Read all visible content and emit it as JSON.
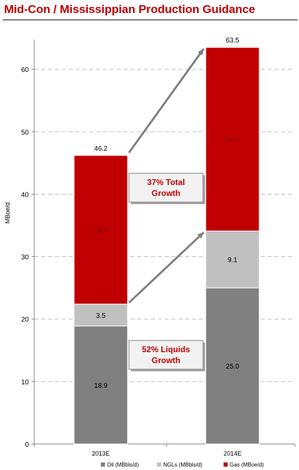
{
  "title": "Mid-Con / Mississippian Production Guidance",
  "chart_data": {
    "type": "bar",
    "stacked": true,
    "categories": [
      "2013E",
      "2014E"
    ],
    "series": [
      {
        "name": "Oil (MBbls/d)",
        "values": [
          18.9,
          25.0
        ],
        "labels": [
          "18.9",
          "25.0"
        ],
        "color": "#808080",
        "label_color": "#000000"
      },
      {
        "name": "NGLs (MBbls/d)",
        "values": [
          3.5,
          9.1
        ],
        "labels": [
          "3.5",
          "9.1"
        ],
        "color": "#c0c0c0",
        "label_color": "#000000"
      },
      {
        "name": "Gas (MBoe/d)",
        "values": [
          23.8,
          29.4
        ],
        "labels": [
          "23.8",
          "29.4"
        ],
        "color": "#c00000",
        "label_color": "#7f0000"
      }
    ],
    "totals": [
      "46.2",
      "63.5"
    ],
    "ylabel": "MBoe/d",
    "ylim": [
      0,
      65
    ],
    "yticks": [
      0,
      10,
      20,
      30,
      40,
      50,
      60
    ],
    "grid": true,
    "legend_position": "bottom-right",
    "annotations": [
      {
        "text_lines": [
          "37% Total",
          "Growth"
        ],
        "color": "#c00000"
      },
      {
        "text_lines": [
          "52% Liquids",
          "Growth"
        ],
        "color": "#c00000"
      }
    ]
  }
}
